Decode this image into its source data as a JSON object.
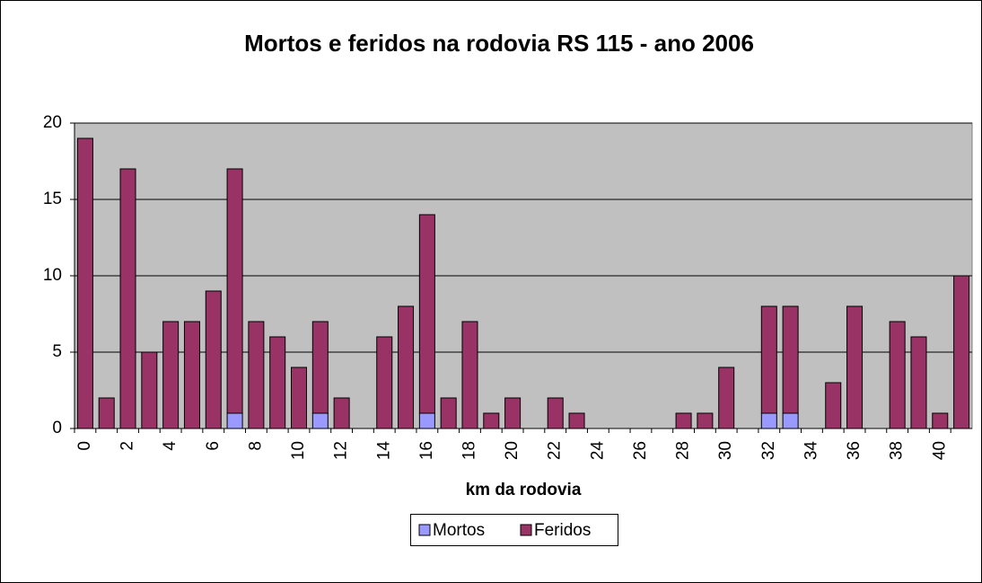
{
  "chart_data": {
    "type": "stacked_bar",
    "title": "Mortos e feridos na rodovia RS 115 - ano 2006",
    "x_label": "km da rodovia",
    "categories": [
      0,
      null,
      2,
      null,
      4,
      null,
      6,
      null,
      8,
      null,
      10,
      null,
      12,
      null,
      14,
      null,
      16,
      null,
      18,
      null,
      20,
      null,
      22,
      null,
      24,
      null,
      26,
      null,
      28,
      null,
      30,
      null,
      32,
      null,
      34,
      null,
      36,
      null,
      38,
      null,
      40,
      null
    ],
    "series": [
      {
        "name": "Mortos",
        "color": "#9999ff",
        "values": [
          0,
          0,
          0,
          0,
          0,
          0,
          0,
          1,
          0,
          0,
          0,
          1,
          0,
          0,
          0,
          0,
          1,
          0,
          0,
          0,
          0,
          0,
          0,
          0,
          0,
          0,
          0,
          0,
          0,
          0,
          0,
          0,
          1,
          1,
          0,
          0,
          0,
          0,
          0,
          0,
          0,
          0
        ]
      },
      {
        "name": "Feridos",
        "color": "#993366",
        "values": [
          19,
          2,
          17,
          5,
          7,
          7,
          9,
          16,
          7,
          6,
          4,
          6,
          2,
          0,
          6,
          8,
          13,
          2,
          7,
          1,
          2,
          0,
          2,
          1,
          0,
          0,
          0,
          0,
          1,
          1,
          4,
          0,
          7,
          7,
          0,
          3,
          8,
          0,
          7,
          6,
          1,
          10
        ]
      }
    ],
    "ylim": [
      0,
      20
    ],
    "yticks": [
      0,
      5,
      10,
      15,
      20
    ],
    "grid": true,
    "plot_background": "#c0c0c0",
    "legend": "bottom"
  }
}
